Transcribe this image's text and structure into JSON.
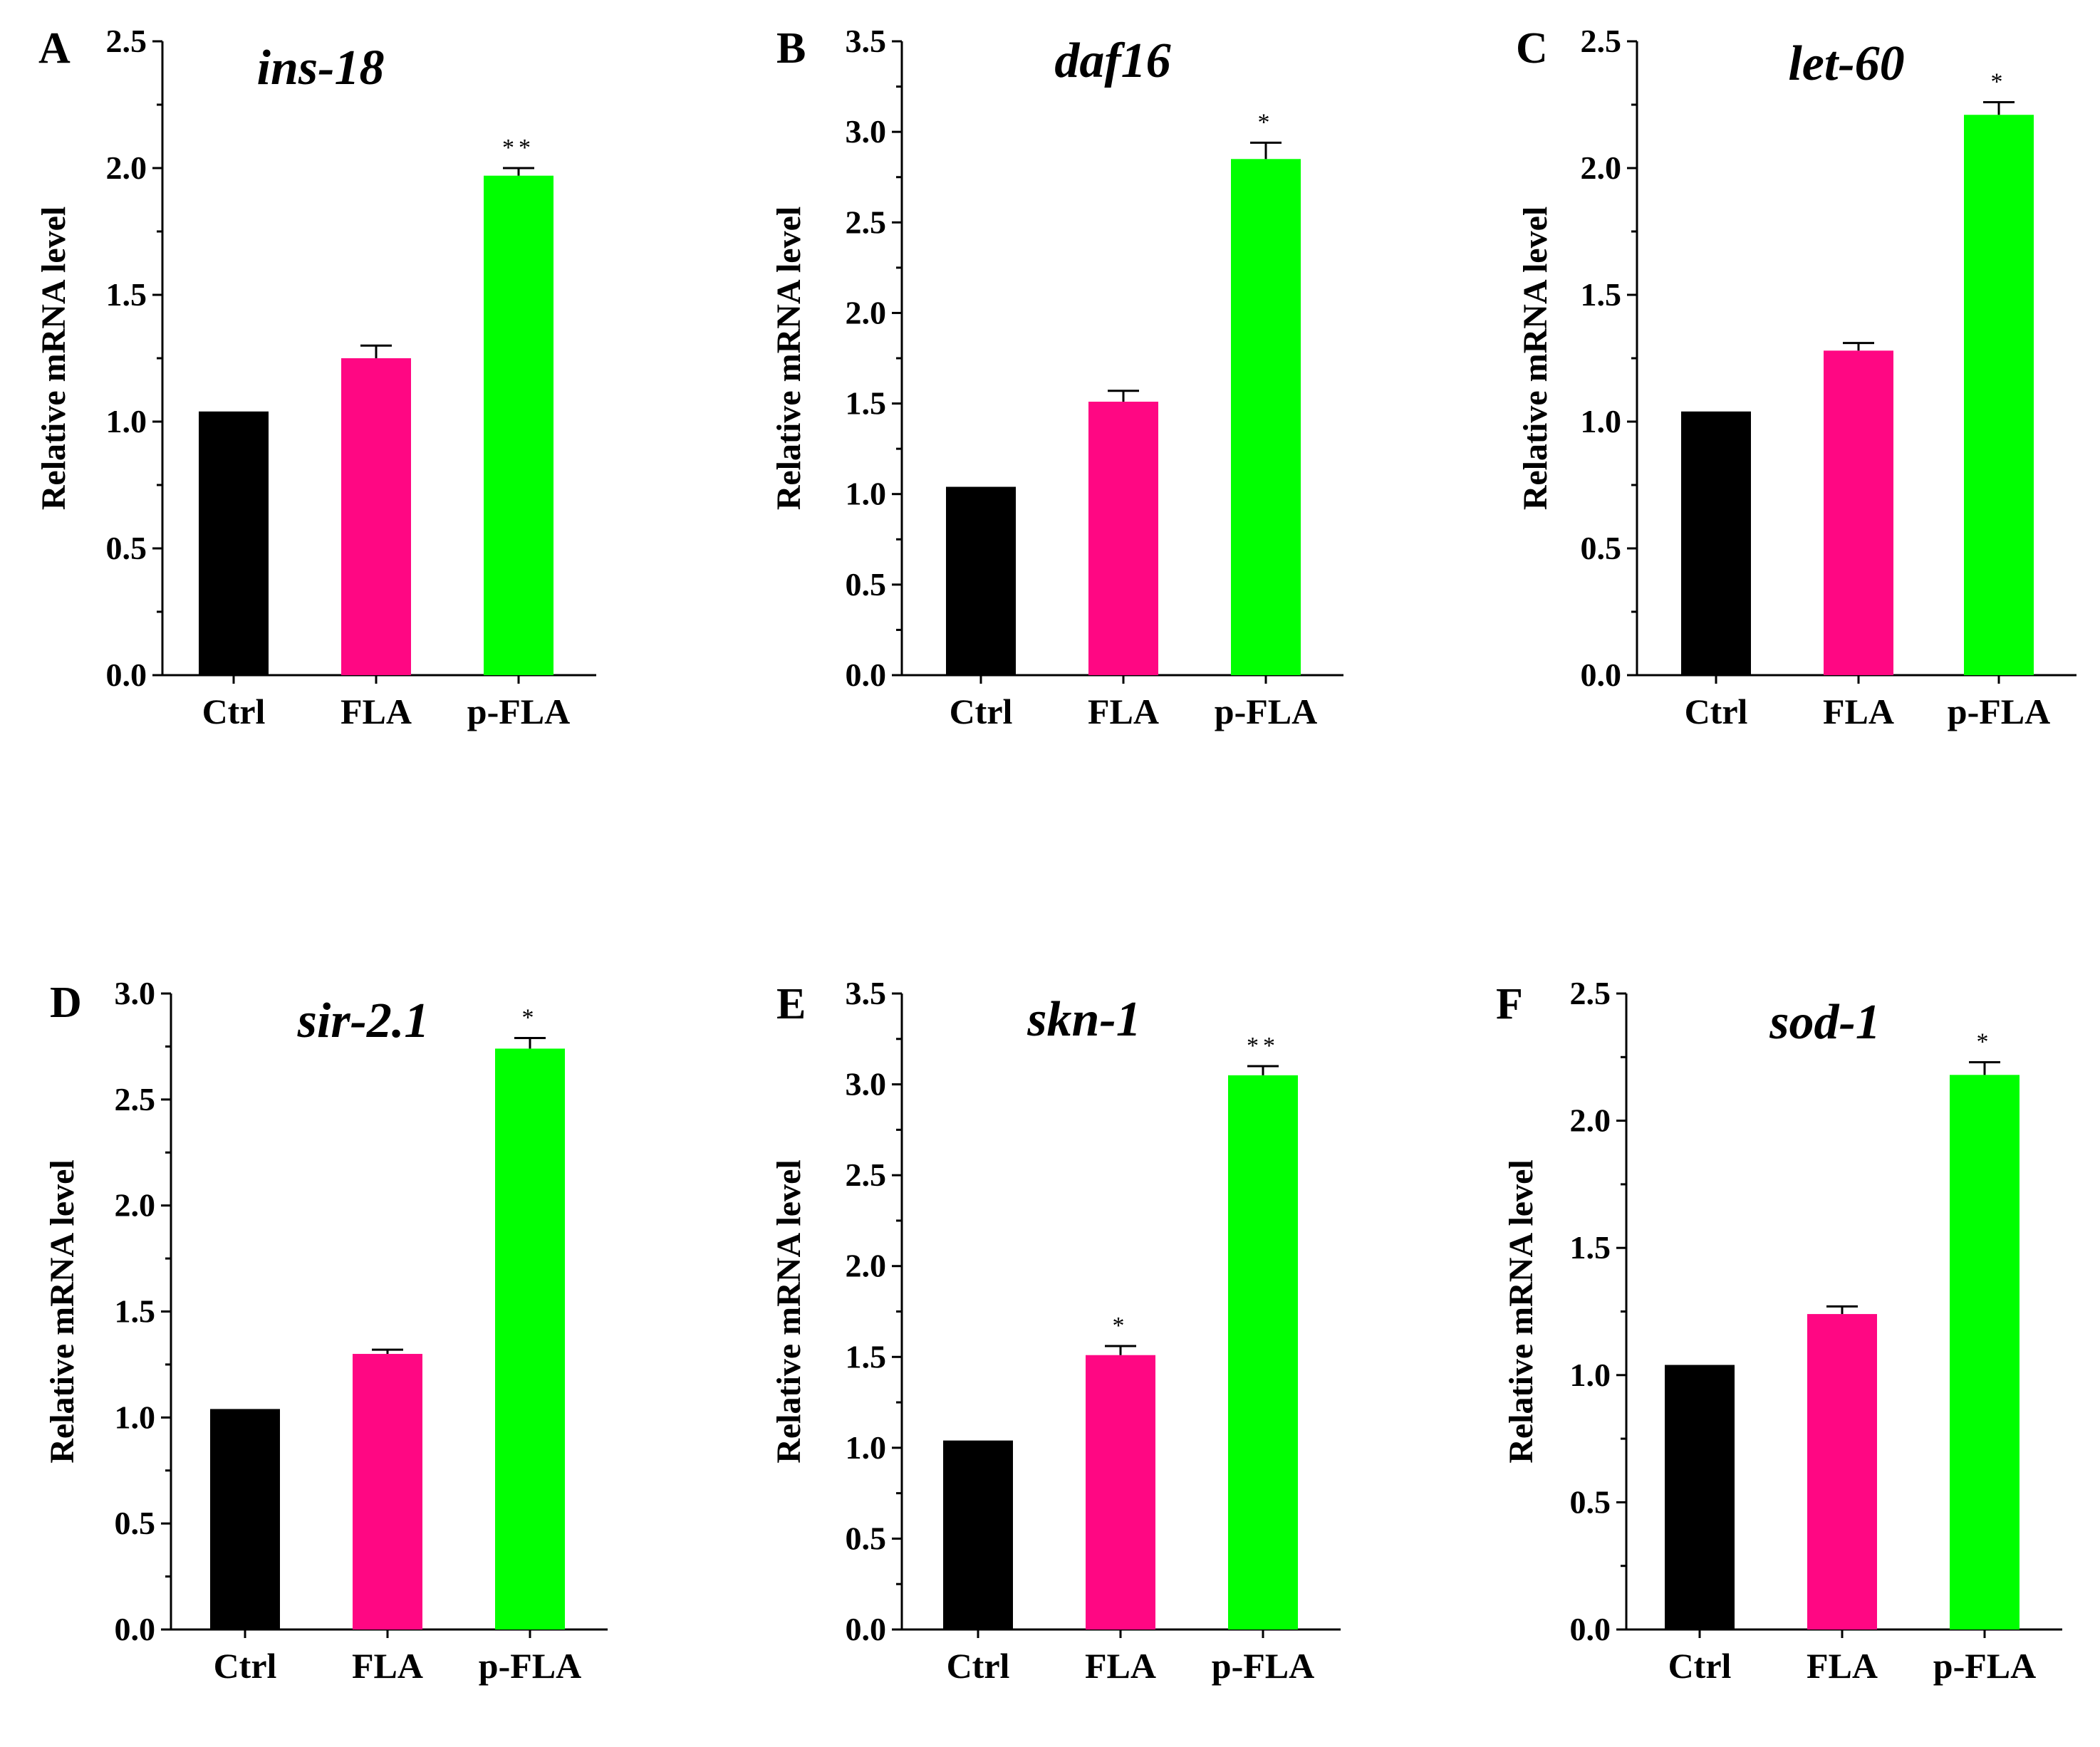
{
  "colors": {
    "Ctrl": "#000000",
    "FLA": "#ff0783",
    "p-FLA": "#00ff00"
  },
  "chart_data": [
    {
      "type": "bar",
      "panel": "A",
      "title": "ins-18",
      "ylabel": "Relative mRNA level",
      "categories": [
        "Ctrl",
        "FLA",
        "p-FLA"
      ],
      "values": [
        1.04,
        1.25,
        1.97
      ],
      "errors": [
        0,
        0.05,
        0.03
      ],
      "significance": [
        "",
        "",
        "**"
      ],
      "ylim": [
        0,
        2.5
      ],
      "yticks": [
        "0.0",
        "0.5",
        "1.0",
        "1.5",
        "2.0",
        "2.5"
      ]
    },
    {
      "type": "bar",
      "panel": "B",
      "title": "daf16",
      "ylabel": "Relative mRNA level",
      "categories": [
        "Ctrl",
        "FLA",
        "p-FLA"
      ],
      "values": [
        1.04,
        1.51,
        2.85
      ],
      "errors": [
        0,
        0.06,
        0.09
      ],
      "significance": [
        "",
        "",
        "*"
      ],
      "ylim": [
        0,
        3.5
      ],
      "yticks": [
        "0.0",
        "0.5",
        "1.0",
        "1.5",
        "2.0",
        "2.5",
        "3.0",
        "3.5"
      ]
    },
    {
      "type": "bar",
      "panel": "C",
      "title": "let-60",
      "ylabel": "Relative mRNA level",
      "categories": [
        "Ctrl",
        "FLA",
        "p-FLA"
      ],
      "values": [
        1.04,
        1.28,
        2.21
      ],
      "errors": [
        0,
        0.03,
        0.05
      ],
      "significance": [
        "",
        "",
        "*"
      ],
      "ylim": [
        0,
        2.5
      ],
      "yticks": [
        "0.0",
        "0.5",
        "1.0",
        "1.5",
        "2.0",
        "2.5"
      ]
    },
    {
      "type": "bar",
      "panel": "D",
      "title": "sir-2.1",
      "ylabel": "Relative mRNA level",
      "categories": [
        "Ctrl",
        "FLA",
        "p-FLA"
      ],
      "values": [
        1.04,
        1.3,
        2.74
      ],
      "errors": [
        0,
        0.02,
        0.05
      ],
      "significance": [
        "",
        "",
        "*"
      ],
      "ylim": [
        0,
        3.0
      ],
      "yticks": [
        "0.0",
        "0.5",
        "1.0",
        "1.5",
        "2.0",
        "2.5",
        "3.0"
      ]
    },
    {
      "type": "bar",
      "panel": "E",
      "title": "skn-1",
      "ylabel": "Relative mRNA level",
      "categories": [
        "Ctrl",
        "FLA",
        "p-FLA"
      ],
      "values": [
        1.04,
        1.51,
        3.05
      ],
      "errors": [
        0,
        0.05,
        0.05
      ],
      "significance": [
        "",
        "*",
        "**"
      ],
      "ylim": [
        0,
        3.5
      ],
      "yticks": [
        "0.0",
        "0.5",
        "1.0",
        "1.5",
        "2.0",
        "2.5",
        "3.0",
        "3.5"
      ]
    },
    {
      "type": "bar",
      "panel": "F",
      "title": "sod-1",
      "ylabel": "Relative mRNA level",
      "categories": [
        "Ctrl",
        "FLA",
        "p-FLA"
      ],
      "values": [
        1.04,
        1.24,
        2.18
      ],
      "errors": [
        0,
        0.03,
        0.05
      ],
      "significance": [
        "",
        "",
        "*"
      ],
      "ylim": [
        0,
        2.5
      ],
      "yticks": [
        "0.0",
        "0.5",
        "1.0",
        "1.5",
        "2.0",
        "2.5"
      ]
    }
  ]
}
